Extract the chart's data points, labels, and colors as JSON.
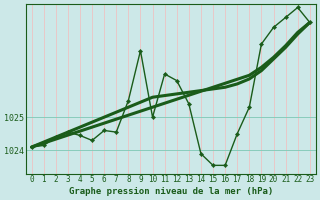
{
  "xlabel": "Graphe pression niveau de la mer (hPa)",
  "background_color": "#cce8e8",
  "grid_color": "#88ccbb",
  "line_color": "#1a5c1a",
  "hours": [
    0,
    1,
    2,
    3,
    4,
    5,
    6,
    7,
    8,
    9,
    10,
    11,
    12,
    13,
    14,
    15,
    16,
    17,
    18,
    19,
    20,
    21,
    22,
    23
  ],
  "pressure": [
    1024.1,
    1024.15,
    1024.4,
    1024.55,
    1024.45,
    1024.3,
    1024.6,
    1024.55,
    1025.5,
    1027.0,
    1025.0,
    1026.3,
    1026.1,
    1025.4,
    1023.9,
    1023.55,
    1023.55,
    1024.5,
    1025.3,
    1027.2,
    1027.7,
    1028.0,
    1028.3,
    1027.85
  ],
  "trend1": [
    1024.1,
    1024.25,
    1024.4,
    1024.55,
    1024.7,
    1024.85,
    1025.0,
    1025.15,
    1025.3,
    1025.45,
    1025.6,
    1025.65,
    1025.7,
    1025.75,
    1025.8,
    1025.85,
    1025.9,
    1026.0,
    1026.15,
    1026.4,
    1026.75,
    1027.1,
    1027.5,
    1027.85
  ],
  "trend2": [
    1024.1,
    1024.22,
    1024.34,
    1024.46,
    1024.58,
    1024.7,
    1024.82,
    1024.94,
    1025.06,
    1025.18,
    1025.3,
    1025.42,
    1025.54,
    1025.66,
    1025.78,
    1025.9,
    1026.02,
    1026.14,
    1026.26,
    1026.5,
    1026.8,
    1027.15,
    1027.55,
    1027.85
  ],
  "ylim_min": 1023.3,
  "ylim_max": 1028.4,
  "yticks": [
    1024,
    1025
  ],
  "xticks": [
    0,
    1,
    2,
    3,
    4,
    5,
    6,
    7,
    8,
    9,
    10,
    11,
    12,
    13,
    14,
    15,
    16,
    17,
    18,
    19,
    20,
    21,
    22,
    23
  ],
  "tick_fontsize": 5.5,
  "label_fontsize": 6.5
}
